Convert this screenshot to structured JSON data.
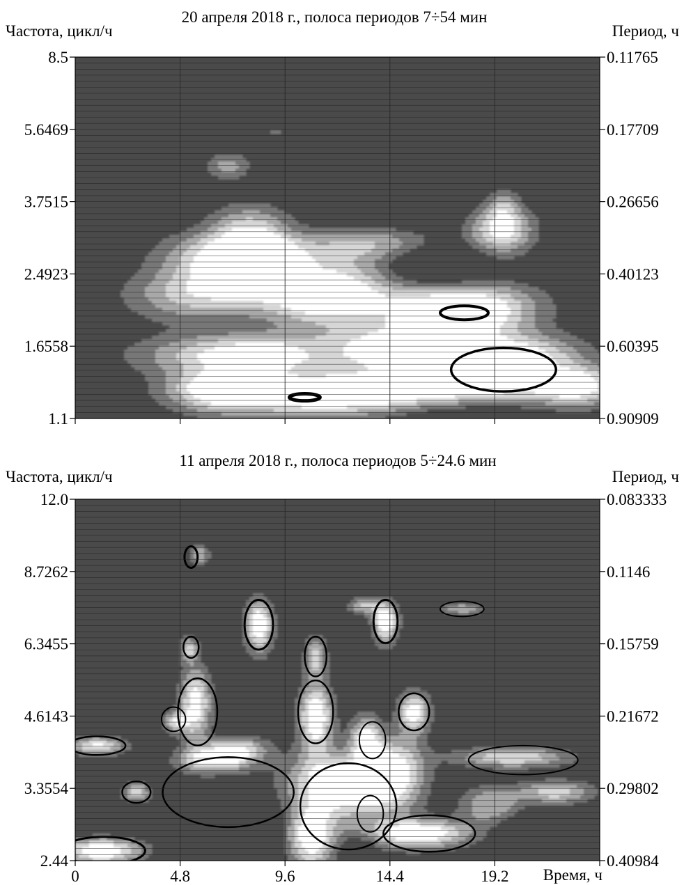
{
  "chart_data": [
    {
      "type": "heatmap",
      "title": "20 апреля 2018 г., полоса периодов 7÷54 мин",
      "ylabel_left": "Частота, цикл/ч",
      "ylabel_right": "Период, ч",
      "xlabel": "",
      "xlim": [
        0,
        24
      ],
      "x_ticks": [
        0,
        4.8,
        9.6,
        14.4,
        19.2,
        24
      ],
      "x_tick_labels": [],
      "ylim": [
        1.1,
        8.5
      ],
      "y_scale": "log",
      "y_tick_labels": [
        "8.5",
        "5.6469",
        "3.7515",
        "2.4923",
        "1.6558",
        "1.1"
      ],
      "y_right_tick_labels": [
        "0.11765",
        "0.17709",
        "0.26656",
        "0.40123",
        "0.60395",
        "0.90909"
      ],
      "colormap": [
        "#4a4a4a",
        "#777777",
        "#a8a8a8",
        "#d6d6d6",
        "#ffffff"
      ],
      "bright_blobs": [
        {
          "t": 7.0,
          "f": 4.6,
          "amp": 0.6,
          "dt": 0.7,
          "df": 0.25
        },
        {
          "t": 9.2,
          "f": 5.55,
          "amp": 0.35,
          "dt": 0.3,
          "df": 0.1
        },
        {
          "t": 8.0,
          "f": 3.2,
          "amp": 0.8,
          "dt": 1.3,
          "df": 0.35
        },
        {
          "t": 6.8,
          "f": 2.7,
          "amp": 1.1,
          "dt": 2.0,
          "df": 0.3
        },
        {
          "t": 8.5,
          "f": 2.65,
          "amp": 1.0,
          "dt": 1.2,
          "df": 0.25
        },
        {
          "t": 5.5,
          "f": 2.2,
          "amp": 0.75,
          "dt": 2.2,
          "df": 0.22
        },
        {
          "t": 11.5,
          "f": 2.15,
          "amp": 1.1,
          "dt": 2.0,
          "df": 0.22
        },
        {
          "t": 14.0,
          "f": 2.95,
          "amp": 0.8,
          "dt": 2.5,
          "df": 0.2
        },
        {
          "t": 12.0,
          "f": 2.5,
          "amp": 0.7,
          "dt": 2.5,
          "df": 0.3
        },
        {
          "t": 19.5,
          "f": 3.2,
          "amp": 1.15,
          "dt": 1.0,
          "df": 0.3
        },
        {
          "t": 19.6,
          "f": 3.7,
          "amp": 0.55,
          "dt": 0.5,
          "df": 0.25
        },
        {
          "t": 16.5,
          "f": 2.0,
          "amp": 1.2,
          "dt": 1.8,
          "df": 0.22
        },
        {
          "t": 19.0,
          "f": 2.05,
          "amp": 0.9,
          "dt": 1.8,
          "df": 0.22
        },
        {
          "t": 8.0,
          "f": 1.57,
          "amp": 1.25,
          "dt": 3.2,
          "df": 0.13
        },
        {
          "t": 14.5,
          "f": 1.62,
          "amp": 1.15,
          "dt": 3.0,
          "df": 0.15
        },
        {
          "t": 20.5,
          "f": 1.55,
          "amp": 1.05,
          "dt": 2.0,
          "df": 0.14
        },
        {
          "t": 11.0,
          "f": 1.25,
          "amp": 1.2,
          "dt": 3.5,
          "df": 0.1
        },
        {
          "t": 17.5,
          "f": 1.3,
          "amp": 1.05,
          "dt": 4.0,
          "df": 0.1
        },
        {
          "t": 6.5,
          "f": 1.3,
          "amp": 0.95,
          "dt": 1.5,
          "df": 0.1
        },
        {
          "t": 23.0,
          "f": 1.33,
          "amp": 0.9,
          "dt": 1.2,
          "df": 0.1
        }
      ],
      "dark_blobs": [
        {
          "t": 16.0,
          "f": 2.7,
          "amp": 0.6,
          "dt": 2.0,
          "df": 0.3
        },
        {
          "t": 11.5,
          "f": 1.6,
          "amp": 0.5,
          "dt": 1.5,
          "df": 0.12
        },
        {
          "t": 17.5,
          "f": 1.15,
          "amp": 0.4,
          "dt": 2.5,
          "df": 0.08
        }
      ],
      "contours": [
        {
          "t": 17.8,
          "f": 2.0,
          "rt": 1.1,
          "rf": 0.08,
          "width": 4
        },
        {
          "t": 19.6,
          "f": 1.45,
          "rt": 2.4,
          "rf": 0.19,
          "width": 3.5
        },
        {
          "t": 10.5,
          "f": 1.24,
          "rt": 0.7,
          "rf": 0.025,
          "width": 5
        }
      ]
    },
    {
      "type": "heatmap",
      "title": "11 апреля 2018 г., полоса периодов 5÷24.6 мин",
      "ylabel_left": "Частота, цикл/ч",
      "ylabel_right": "Период, ч",
      "xlabel": "Время, ч",
      "xlim": [
        0,
        24
      ],
      "x_ticks": [
        0,
        4.8,
        9.6,
        14.4,
        19.2,
        24
      ],
      "x_tick_labels": [
        "0",
        "4.8",
        "9.6",
        "14.4",
        "19.2"
      ],
      "ylim": [
        2.44,
        12.0
      ],
      "y_scale": "log",
      "y_tick_labels": [
        "12.0",
        "8.7262",
        "6.3455",
        "4.6143",
        "3.3554",
        "2.44"
      ],
      "y_right_tick_labels": [
        "0.083333",
        "0.1146",
        "0.15759",
        "0.21672",
        "0.29802",
        "0.40984"
      ],
      "colormap": [
        "#4a4a4a",
        "#777777",
        "#a8a8a8",
        "#d6d6d6",
        "#ffffff"
      ],
      "bright_blobs": [
        {
          "t": 8.4,
          "f": 6.9,
          "amp": 1.3,
          "dt": 0.45,
          "df": 0.55
        },
        {
          "t": 14.2,
          "f": 7.0,
          "amp": 1.3,
          "dt": 0.4,
          "df": 0.45
        },
        {
          "t": 5.5,
          "f": 4.9,
          "amp": 1.2,
          "dt": 0.5,
          "df": 0.55
        },
        {
          "t": 11.0,
          "f": 4.6,
          "amp": 1.3,
          "dt": 0.55,
          "df": 0.5
        },
        {
          "t": 15.5,
          "f": 4.7,
          "amp": 1.2,
          "dt": 0.5,
          "df": 0.3
        },
        {
          "t": 12.0,
          "f": 3.4,
          "amp": 1.35,
          "dt": 1.6,
          "df": 0.35
        },
        {
          "t": 14.5,
          "f": 3.6,
          "amp": 1.2,
          "dt": 1.0,
          "df": 0.4
        },
        {
          "t": 15.8,
          "f": 2.75,
          "amp": 1.3,
          "dt": 1.6,
          "df": 0.12
        },
        {
          "t": 1.2,
          "f": 2.55,
          "amp": 1.3,
          "dt": 1.3,
          "df": 0.1
        },
        {
          "t": 1.0,
          "f": 4.05,
          "amp": 1.05,
          "dt": 0.9,
          "df": 0.12
        },
        {
          "t": 2.8,
          "f": 3.3,
          "amp": 0.9,
          "dt": 0.45,
          "df": 0.1
        },
        {
          "t": 6.4,
          "f": 3.8,
          "amp": 1.05,
          "dt": 1.2,
          "df": 0.15
        },
        {
          "t": 20.0,
          "f": 3.85,
          "amp": 1.0,
          "dt": 1.8,
          "df": 0.12
        },
        {
          "t": 22.0,
          "f": 3.3,
          "amp": 0.9,
          "dt": 1.2,
          "df": 0.12
        },
        {
          "t": 4.6,
          "f": 4.5,
          "amp": 0.9,
          "dt": 0.4,
          "df": 0.15
        },
        {
          "t": 10.8,
          "f": 2.7,
          "amp": 1.25,
          "dt": 0.7,
          "df": 0.25
        },
        {
          "t": 5.2,
          "f": 6.2,
          "amp": 0.85,
          "dt": 0.3,
          "df": 0.25
        },
        {
          "t": 11.0,
          "f": 6.0,
          "amp": 0.9,
          "dt": 0.35,
          "df": 0.4
        },
        {
          "t": 19.0,
          "f": 3.1,
          "amp": 0.75,
          "dt": 1.0,
          "df": 0.2
        },
        {
          "t": 13.2,
          "f": 7.5,
          "amp": 0.75,
          "dt": 0.5,
          "df": 0.2
        },
        {
          "t": 17.7,
          "f": 7.4,
          "amp": 0.7,
          "dt": 0.7,
          "df": 0.15
        },
        {
          "t": 5.7,
          "f": 9.4,
          "amp": 0.75,
          "dt": 0.3,
          "df": 0.3
        },
        {
          "t": 7.4,
          "f": 4.0,
          "amp": 0.9,
          "dt": 1.0,
          "df": 0.15
        },
        {
          "t": 13.3,
          "f": 4.2,
          "amp": 1.0,
          "dt": 0.5,
          "df": 0.3
        }
      ],
      "dark_blobs": [
        {
          "t": 7.0,
          "f": 3.0,
          "amp": 0.5,
          "dt": 1.3,
          "df": 0.2
        },
        {
          "t": 21.0,
          "f": 2.8,
          "amp": 0.4,
          "dt": 1.5,
          "df": 0.15
        },
        {
          "t": 13.0,
          "f": 2.6,
          "amp": 0.3,
          "dt": 0.6,
          "df": 0.1
        }
      ],
      "contours": [
        {
          "t": 8.4,
          "f": 6.9,
          "rt": 0.65,
          "rf": 0.8,
          "width": 3
        },
        {
          "t": 14.2,
          "f": 7.0,
          "rt": 0.55,
          "rf": 0.7,
          "width": 3
        },
        {
          "t": 5.3,
          "f": 9.3,
          "rt": 0.3,
          "rf": 0.45,
          "width": 3
        },
        {
          "t": 5.3,
          "f": 6.25,
          "rt": 0.35,
          "rf": 0.3,
          "width": 2.5
        },
        {
          "t": 11.0,
          "f": 4.7,
          "rt": 0.8,
          "rf": 0.7,
          "width": 2.5
        },
        {
          "t": 15.5,
          "f": 4.7,
          "rt": 0.7,
          "rf": 0.4,
          "width": 2.5
        },
        {
          "t": 5.6,
          "f": 4.7,
          "rt": 0.9,
          "rf": 0.75,
          "width": 2.5
        },
        {
          "t": 1.0,
          "f": 4.05,
          "rt": 1.3,
          "rf": 0.17,
          "width": 2.5
        },
        {
          "t": 2.8,
          "f": 3.3,
          "rt": 0.65,
          "rf": 0.16,
          "width": 2.5
        },
        {
          "t": 1.3,
          "f": 2.55,
          "rt": 1.9,
          "rf": 0.16,
          "width": 3
        },
        {
          "t": 7.0,
          "f": 3.3,
          "rt": 3.0,
          "rf": 0.55,
          "width": 2.5
        },
        {
          "t": 12.5,
          "f": 3.1,
          "rt": 2.2,
          "rf": 0.65,
          "width": 2.5
        },
        {
          "t": 16.2,
          "f": 2.75,
          "rt": 2.1,
          "rf": 0.23,
          "width": 2.5
        },
        {
          "t": 11.0,
          "f": 6.0,
          "rt": 0.5,
          "rf": 0.55,
          "width": 2.5
        },
        {
          "t": 13.6,
          "f": 4.15,
          "rt": 0.6,
          "rf": 0.35,
          "width": 2
        },
        {
          "t": 4.5,
          "f": 4.55,
          "rt": 0.55,
          "rf": 0.25,
          "width": 2
        },
        {
          "t": 17.7,
          "f": 7.4,
          "rt": 1.0,
          "rf": 0.25,
          "width": 2
        },
        {
          "t": 20.5,
          "f": 3.8,
          "rt": 2.5,
          "rf": 0.25,
          "width": 2
        },
        {
          "t": 13.5,
          "f": 3.0,
          "rt": 0.6,
          "rf": 0.25,
          "width": 2
        }
      ]
    }
  ]
}
